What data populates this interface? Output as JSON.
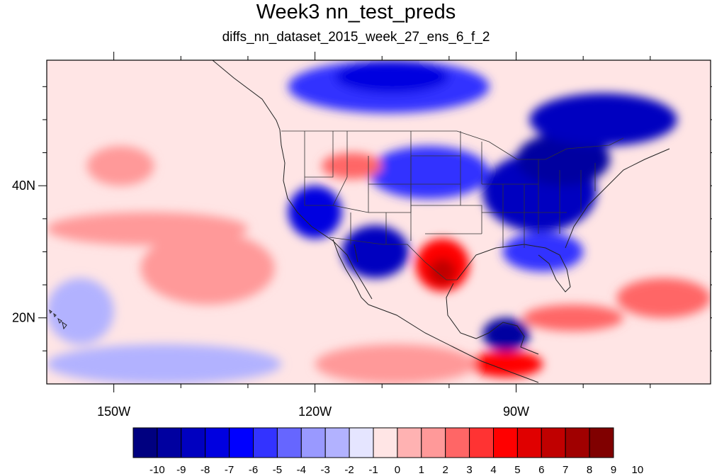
{
  "title": "Week3 nn_test_preds",
  "subtitle": "diffs_nn_dataset_2015_week_27_ens_6_f_2",
  "lat_labels": [
    "40N",
    "20N"
  ],
  "lon_labels": [
    "150W",
    "120W",
    "90W"
  ],
  "colorbar": {
    "labels": [
      "-10",
      "-9",
      "-8",
      "-7",
      "-6",
      "-5",
      "-4",
      "-3",
      "-2",
      "-1",
      "0",
      "1",
      "2",
      "3",
      "4",
      "5",
      "6",
      "7",
      "8",
      "9",
      "10"
    ],
    "colors": [
      "#000080",
      "#0000A0",
      "#0000C0",
      "#0000E0",
      "#0000FF",
      "#3333FF",
      "#6666FF",
      "#9999FF",
      "#B2B2FF",
      "#E5E5FF",
      "#FFE5E5",
      "#FFB2B2",
      "#FF9999",
      "#FF6666",
      "#FF3333",
      "#FF0000",
      "#E00000",
      "#C00000",
      "#A00000",
      "#800000"
    ]
  },
  "field": {
    "lon_range": [
      -160,
      -61
    ],
    "lat_range": [
      10,
      59
    ],
    "variable": "difference",
    "background_value": 1,
    "regions": [
      {
        "name": "pacific-warm-band",
        "level": 2,
        "lon": [
          -160,
          -130
        ],
        "lat": [
          31,
          36
        ]
      },
      {
        "name": "pacific-warm-patch-1",
        "level": 2,
        "lon": [
          -146,
          -126
        ],
        "lat": [
          22,
          33
        ]
      },
      {
        "name": "pacific-warm-patch-2",
        "level": 2,
        "lon": [
          -154,
          -144
        ],
        "lat": [
          40,
          46
        ]
      },
      {
        "name": "pacific-cool-west",
        "level": -1,
        "lon": [
          -160,
          -150
        ],
        "lat": [
          16,
          26
        ]
      },
      {
        "name": "pacific-cool-south",
        "level": -1,
        "lon": [
          -160,
          -125
        ],
        "lat": [
          10,
          16
        ]
      },
      {
        "name": "canada-north-cold",
        "level": -4,
        "lon": [
          -124,
          -94
        ],
        "lat": [
          51,
          59
        ]
      },
      {
        "name": "canada-north-cold-core",
        "level": -6,
        "lon": [
          -117,
          -100
        ],
        "lat": [
          54,
          59
        ]
      },
      {
        "name": "great-plains-cold",
        "level": -4,
        "lon": [
          -112,
          -94
        ],
        "lat": [
          38,
          46
        ]
      },
      {
        "name": "west-coast-cold",
        "level": -6,
        "lon": [
          -124,
          -116
        ],
        "lat": [
          32,
          40
        ]
      },
      {
        "name": "southwest-cold",
        "level": -7,
        "lon": [
          -116,
          -106
        ],
        "lat": [
          26,
          34
        ]
      },
      {
        "name": "east-us-cold",
        "level": -7,
        "lon": [
          -95,
          -78
        ],
        "lat": [
          33,
          45
        ]
      },
      {
        "name": "great-lakes-cold",
        "level": -8,
        "lon": [
          -90,
          -76
        ],
        "lat": [
          40,
          48
        ]
      },
      {
        "name": "quebec-cold",
        "level": -7,
        "lon": [
          -88,
          -66
        ],
        "lat": [
          46,
          54
        ]
      },
      {
        "name": "southeast-cold",
        "level": -4,
        "lon": [
          -92,
          -80
        ],
        "lat": [
          27,
          33
        ]
      },
      {
        "name": "caribbean-cold",
        "level": -8,
        "lon": [
          -95,
          -88
        ],
        "lat": [
          15,
          20
        ]
      },
      {
        "name": "mexico-warm",
        "level": 5,
        "lon": [
          -105,
          -97
        ],
        "lat": [
          24,
          32
        ]
      },
      {
        "name": "mexico-warm-core",
        "level": 7,
        "lon": [
          -103,
          -99
        ],
        "lat": [
          25,
          29
        ]
      },
      {
        "name": "idaho-warm",
        "level": 3,
        "lon": [
          -119,
          -110
        ],
        "lat": [
          41,
          45
        ]
      },
      {
        "name": "atlantic-warm",
        "level": 3,
        "lon": [
          -75,
          -61
        ],
        "lat": [
          20,
          26
        ]
      },
      {
        "name": "gulf-warm",
        "level": 3,
        "lon": [
          -89,
          -74
        ],
        "lat": [
          18,
          22
        ]
      },
      {
        "name": "central-america-warm",
        "level": 5,
        "lon": [
          -97,
          -86
        ],
        "lat": [
          11,
          15
        ]
      },
      {
        "name": "east-pacific-warm",
        "level": 2,
        "lon": [
          -120,
          -96
        ],
        "lat": [
          10,
          16
        ]
      }
    ]
  }
}
